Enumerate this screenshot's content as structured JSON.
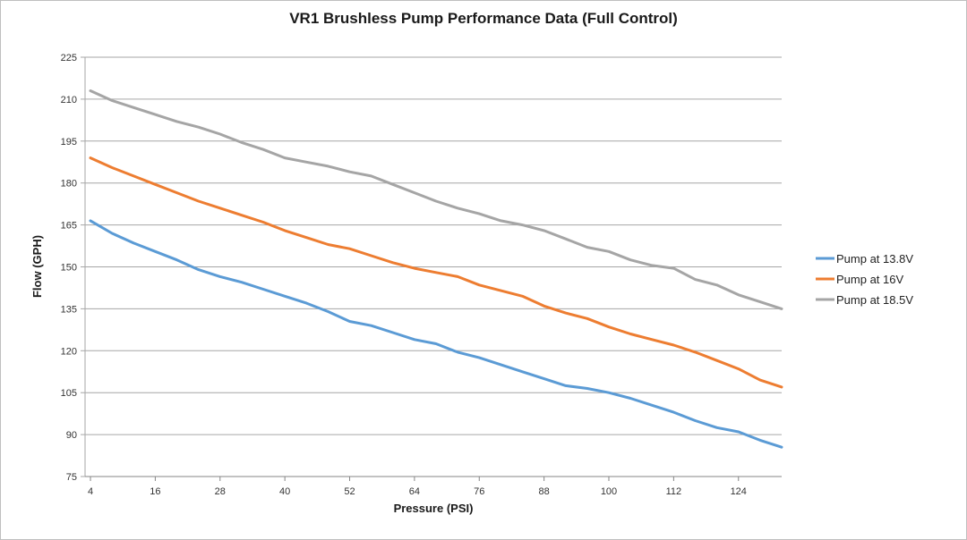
{
  "chart_data": {
    "type": "line",
    "title": "VR1 Brushless Pump Performance Data (Full Control)",
    "xlabel": "Pressure (PSI)",
    "ylabel": "Flow (GPH)",
    "xlim": [
      3,
      132
    ],
    "ylim": [
      75,
      225
    ],
    "x_ticks": [
      4,
      16,
      28,
      40,
      52,
      64,
      76,
      88,
      100,
      112,
      124
    ],
    "y_ticks": [
      75,
      90,
      105,
      120,
      135,
      150,
      165,
      180,
      195,
      210,
      225
    ],
    "grid": "horizontal",
    "legend_position": "right",
    "x": [
      4,
      8,
      12,
      16,
      20,
      24,
      28,
      32,
      36,
      40,
      44,
      48,
      52,
      56,
      60,
      64,
      68,
      72,
      76,
      80,
      84,
      88,
      92,
      96,
      100,
      104,
      108,
      112,
      116,
      120,
      124,
      128,
      132
    ],
    "series": [
      {
        "name": "Pump at 13.8V",
        "color": "#5b9bd5",
        "values": [
          166.5,
          162.0,
          158.5,
          155.5,
          152.5,
          149.0,
          146.5,
          144.5,
          142.0,
          139.5,
          137.0,
          134.0,
          130.5,
          129.0,
          126.5,
          124.0,
          122.5,
          119.5,
          117.5,
          115.0,
          112.5,
          110.0,
          107.5,
          106.5,
          105.0,
          103.0,
          100.5,
          98.0,
          95.0,
          92.5,
          91.0,
          88.0,
          85.5
        ]
      },
      {
        "name": "Pump at 16V",
        "color": "#ed7d31",
        "values": [
          189.0,
          185.5,
          182.5,
          179.5,
          176.5,
          173.5,
          171.0,
          168.5,
          166.0,
          163.0,
          160.5,
          158.0,
          156.5,
          154.0,
          151.5,
          149.5,
          148.0,
          146.5,
          143.5,
          141.5,
          139.5,
          136.0,
          133.5,
          131.5,
          128.5,
          126.0,
          124.0,
          122.0,
          119.5,
          116.5,
          113.5,
          109.5,
          107.0
        ]
      },
      {
        "name": "Pump at 18.5V",
        "color": "#a5a5a5",
        "values": [
          213.0,
          209.5,
          207.0,
          204.5,
          202.0,
          200.0,
          197.5,
          194.5,
          192.0,
          189.0,
          187.5,
          186.0,
          184.0,
          182.5,
          179.5,
          176.5,
          173.5,
          171.0,
          169.0,
          166.5,
          165.0,
          163.0,
          160.0,
          157.0,
          155.5,
          152.5,
          150.5,
          149.5,
          145.5,
          143.5,
          140.0,
          137.5,
          135.0
        ]
      }
    ]
  }
}
